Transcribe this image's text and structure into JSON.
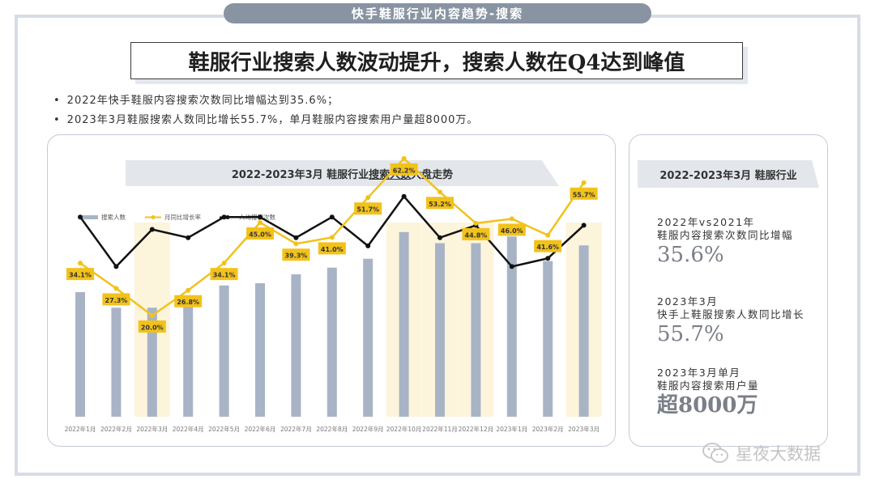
{
  "header": {
    "tab": "快手鞋服行业内容趋势-搜索",
    "headline": "鞋服行业搜索人数波动提升，搜索人数在Q4达到峰值"
  },
  "bullets": [
    "2022年快手鞋服内容搜索次数同比增幅达到35.6%；",
    "2023年3月鞋服搜索人数同比增长55.7%，单月鞋服内容搜索用户量超8000万。"
  ],
  "chart_panel": {
    "title_pre": "2022-2023年3月 鞋服行业",
    "title_underlined": "搜索人数",
    "title_post": "大盘走势"
  },
  "side_panel": {
    "title": "2022-2023年3月 鞋服行业",
    "stats": [
      {
        "line1": "2022年vs2021年",
        "line2": "鞋服内容搜索次数同比增幅",
        "value": "35.6%"
      },
      {
        "line1": "2023年3月",
        "line2": "快手上鞋服搜索人数同比增长",
        "value": "55.7%"
      },
      {
        "line1": "2023年3月单月",
        "line2": "鞋服内容搜索用户量",
        "value": "超8000万"
      }
    ]
  },
  "watermark": "星夜大数据",
  "colors": {
    "bar": "#a8b4c6",
    "growth_line": "#f2c21b",
    "avg_line": "#111111",
    "highlight": "#fdf4dc",
    "label_bg": "#f2c21b"
  },
  "chart_data": {
    "type": "bar",
    "categories": [
      "2022年1月",
      "2022年2月",
      "2022年3月",
      "2022年4月",
      "2022年5月",
      "2022年6月",
      "2022年7月",
      "2022年8月",
      "2022年9月",
      "2022年10月",
      "2022年11月",
      "2022年12月",
      "2023年1月",
      "2023年2月",
      "2023年3月"
    ],
    "highlighted_categories": [
      "2022年3月",
      "2022年10月",
      "2022年11月",
      "2022年12月",
      "2023年3月"
    ],
    "series": [
      {
        "name": "搜索人数",
        "type": "bar",
        "values": [
          56,
          49,
          49,
          52,
          59,
          60,
          64,
          67,
          71,
          83,
          78,
          78,
          81,
          70,
          77
        ]
      },
      {
        "name": "月同比增长率",
        "type": "line",
        "values": [
          34.1,
          27.3,
          20.0,
          26.8,
          34.1,
          45.0,
          39.3,
          41.0,
          51.7,
          62.2,
          53.2,
          44.8,
          46.0,
          41.6,
          55.7
        ],
        "labels": [
          "34.1%",
          "27.3%",
          "20.0%",
          "26.8%",
          "34.1%",
          "45.0%",
          "39.3%",
          "41.0%",
          "51.7%",
          "62.2%",
          "53.2%",
          "44.8%",
          "46.0%",
          "41.6%",
          "55.7%"
        ]
      },
      {
        "name": "人均搜索次数",
        "type": "line",
        "values": [
          78,
          66,
          75,
          73,
          78,
          78,
          73,
          78,
          71,
          83,
          73,
          76,
          66,
          68,
          76
        ]
      }
    ],
    "legend": "top-left",
    "grid": false
  }
}
